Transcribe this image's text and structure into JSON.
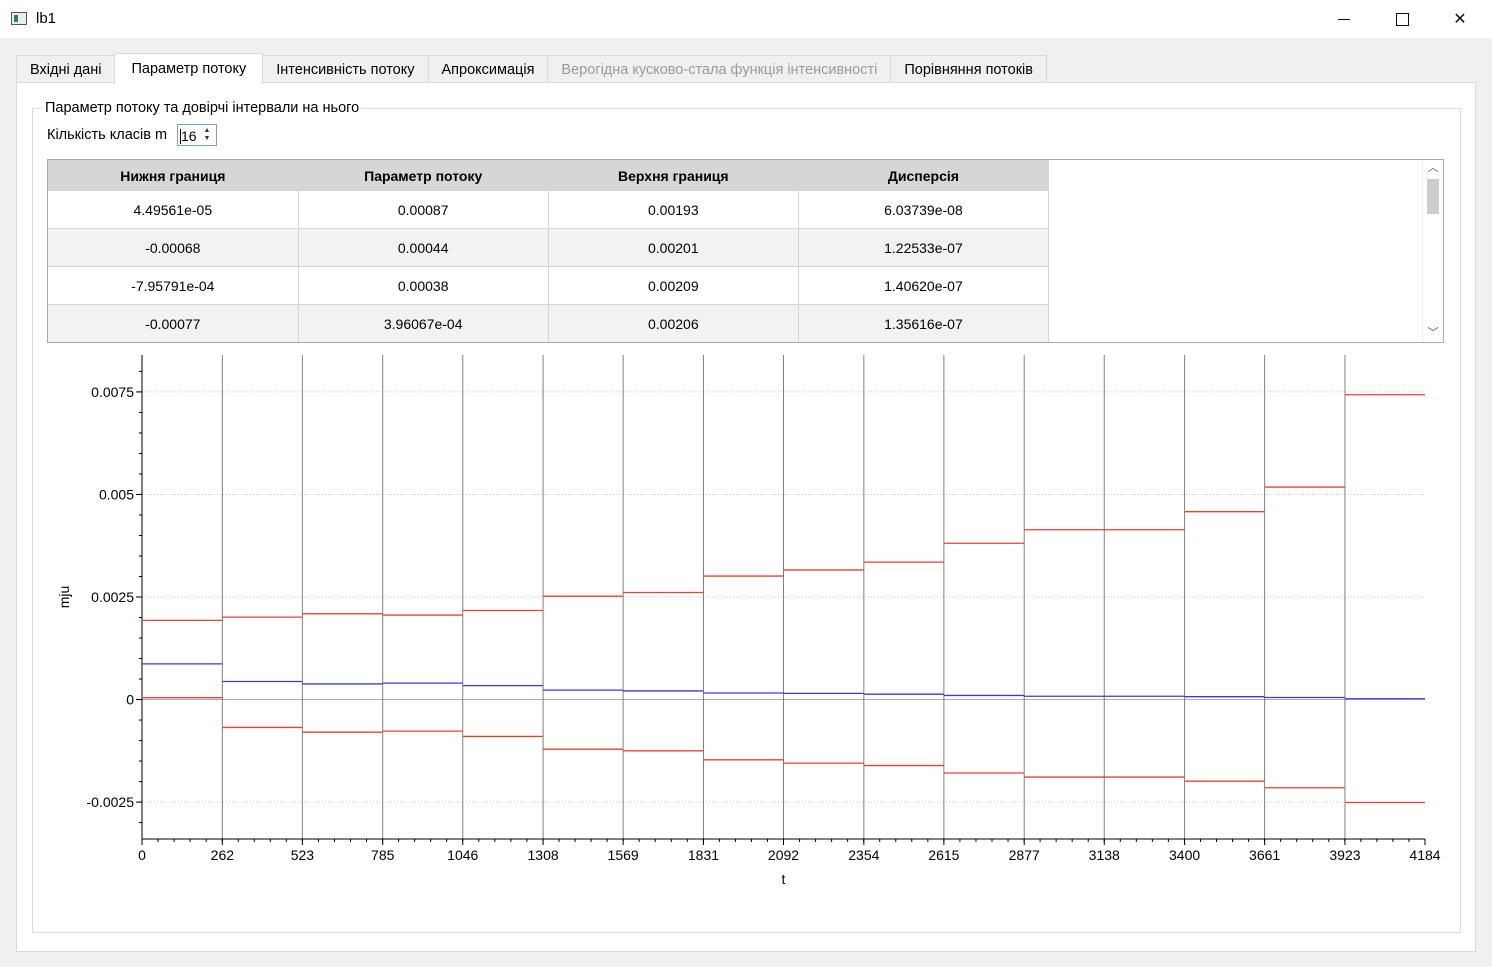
{
  "window": {
    "title": "lb1",
    "minimize_icon": "minimize-icon",
    "maximize_icon": "maximize-icon",
    "close_icon": "close-icon"
  },
  "tabs": [
    {
      "label": "Вхідні дані",
      "state": "normal"
    },
    {
      "label": "Параметр потоку",
      "state": "active"
    },
    {
      "label": "Інтенсивність потоку",
      "state": "normal"
    },
    {
      "label": "Апроксимація",
      "state": "normal"
    },
    {
      "label": "Верогідна кусково-стала функція інтенсивності",
      "state": "disabled"
    },
    {
      "label": "Порівняння потоків",
      "state": "normal"
    }
  ],
  "group": {
    "title": "Параметр потоку та довірчі інтервали на нього",
    "classes_label": "Кількість класів m",
    "classes_value": "16"
  },
  "table": {
    "columns": [
      "Нижня границя",
      "Параметр потоку",
      "Верхня границя",
      "Дисперсія"
    ],
    "rows": [
      [
        "4.49561e-05",
        "0.00087",
        "0.00193",
        "6.03739e-08"
      ],
      [
        "-0.00068",
        "0.00044",
        "0.00201",
        "1.22533e-07"
      ],
      [
        "-7.95791e-04",
        "0.00038",
        "0.00209",
        "1.40620e-07"
      ],
      [
        "-0.00077",
        "3.96067e-04",
        "0.00206",
        "1.35616e-07"
      ]
    ]
  },
  "chart_data": {
    "type": "line",
    "step": true,
    "xlabel": "t",
    "ylabel": "mju",
    "xticks": [
      0,
      262,
      523,
      785,
      1046,
      1308,
      1569,
      1831,
      2092,
      2354,
      2615,
      2877,
      3138,
      3400,
      3661,
      3923,
      4184
    ],
    "yticks": [
      -0.0025,
      0,
      0.0025,
      0.005,
      0.0075
    ],
    "ytick_labels": [
      "-0.0025",
      "0",
      "0.0025",
      "0.005",
      "0.0075"
    ],
    "xlim": [
      0,
      4184
    ],
    "ylim": [
      -0.0034,
      0.0084
    ],
    "grid": true,
    "colors": {
      "upper": "#e8413c",
      "lower": "#e8413c",
      "param": "#3a3ae0",
      "zero": "#b0b0b0",
      "divider": "#808080"
    },
    "series": [
      {
        "values": [
          0.00193,
          0.00201,
          0.00209,
          0.00206,
          0.00217,
          0.00252,
          0.00261,
          0.00301,
          0.00316,
          0.00335,
          0.00381,
          0.00414,
          0.00414,
          0.00458,
          0.00518,
          0.00743
        ]
      },
      {
        "values": [
          0.00087,
          0.00044,
          0.00038,
          0.0004,
          0.00034,
          0.00023,
          0.00021,
          0.00016,
          0.00015,
          0.00013,
          0.0001,
          8e-05,
          8e-05,
          7e-05,
          5e-05,
          2e-05
        ]
      },
      {
        "values": [
          4.49561e-05,
          -0.00068,
          -0.000795791,
          -0.00077,
          -0.0009,
          -0.00121,
          -0.00125,
          -0.00147,
          -0.00155,
          -0.00161,
          -0.00179,
          -0.00189,
          -0.00189,
          -0.00199,
          -0.00215,
          -0.00251
        ]
      }
    ]
  }
}
